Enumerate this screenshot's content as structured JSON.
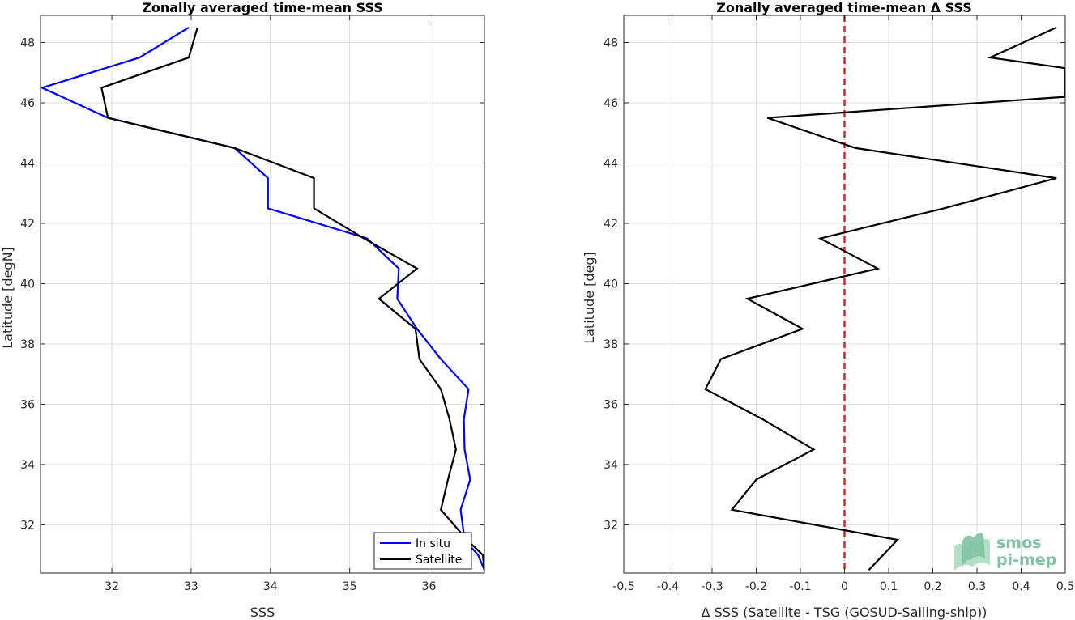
{
  "chart_data": [
    {
      "type": "line",
      "title": "Zonally averaged time-mean SSS",
      "xlabel": "SSS",
      "ylabel": "Latitude [degN]",
      "xlim": [
        31.1,
        36.7
      ],
      "ylim": [
        30.4,
        48.9
      ],
      "xticks": [
        32,
        33,
        34,
        35,
        36
      ],
      "yticks": [
        32,
        34,
        36,
        38,
        40,
        42,
        44,
        46,
        48
      ],
      "grid": true,
      "legend_position": "bottom-right",
      "series": [
        {
          "name": "In situ",
          "color": "#0000ff",
          "x": [
            32.97,
            32.35,
            31.12,
            31.95,
            33.55,
            33.97,
            33.97,
            35.22,
            35.62,
            35.6,
            35.85,
            36.15,
            36.5,
            36.44,
            36.45,
            36.52,
            36.4,
            36.45,
            36.62,
            36.7
          ],
          "y": [
            48.5,
            47.5,
            46.5,
            45.5,
            44.5,
            43.5,
            42.5,
            41.5,
            40.5,
            39.5,
            38.5,
            37.5,
            36.5,
            35.5,
            34.5,
            33.5,
            32.5,
            31.5,
            31.0,
            30.5
          ]
        },
        {
          "name": "Satellite",
          "color": "#000000",
          "x": [
            33.08,
            32.97,
            31.87,
            31.95,
            33.55,
            34.55,
            34.55,
            35.18,
            35.85,
            35.37,
            35.83,
            35.88,
            36.15,
            36.26,
            36.34,
            36.24,
            36.15,
            36.48,
            36.68,
            36.7
          ],
          "y": [
            48.5,
            47.5,
            46.5,
            45.5,
            44.5,
            43.5,
            42.5,
            41.5,
            40.5,
            39.5,
            38.5,
            37.5,
            36.5,
            35.5,
            34.5,
            33.5,
            32.5,
            31.5,
            31.0,
            30.5
          ]
        }
      ]
    },
    {
      "type": "line",
      "title": "Zonally averaged time-mean Δ SSS",
      "xlabel": "Δ SSS (Satellite - TSG (GOSUD-Sailing-ship))",
      "ylabel": "Latitude [deg]",
      "xlim": [
        -0.5,
        0.5
      ],
      "ylim": [
        30.4,
        48.9
      ],
      "xticks": [
        -0.5,
        -0.4,
        -0.3,
        -0.2,
        -0.1,
        0,
        0.1,
        0.2,
        0.3,
        0.4,
        0.5
      ],
      "yticks": [
        32,
        34,
        36,
        38,
        40,
        42,
        44,
        46,
        48
      ],
      "grid": true,
      "zero_line_color": "#e8201a",
      "series": [
        {
          "color": "#000000",
          "x": [
            0.055,
            0.12,
            -0.255,
            -0.2,
            -0.07,
            -0.185,
            -0.315,
            -0.28,
            -0.095,
            -0.22,
            0.075,
            -0.055,
            0.225,
            0.48,
            0.025,
            -0.175,
            0.5,
            0.5,
            0.33,
            0.48
          ],
          "y": [
            30.5,
            31.5,
            32.5,
            33.5,
            34.5,
            35.5,
            36.5,
            37.5,
            38.5,
            39.5,
            40.5,
            41.5,
            42.5,
            43.5,
            44.5,
            45.5,
            46.2,
            47.15,
            47.5,
            48.5
          ]
        }
      ]
    }
  ],
  "logo": {
    "line1": "smos",
    "line2": "pi-mep"
  }
}
